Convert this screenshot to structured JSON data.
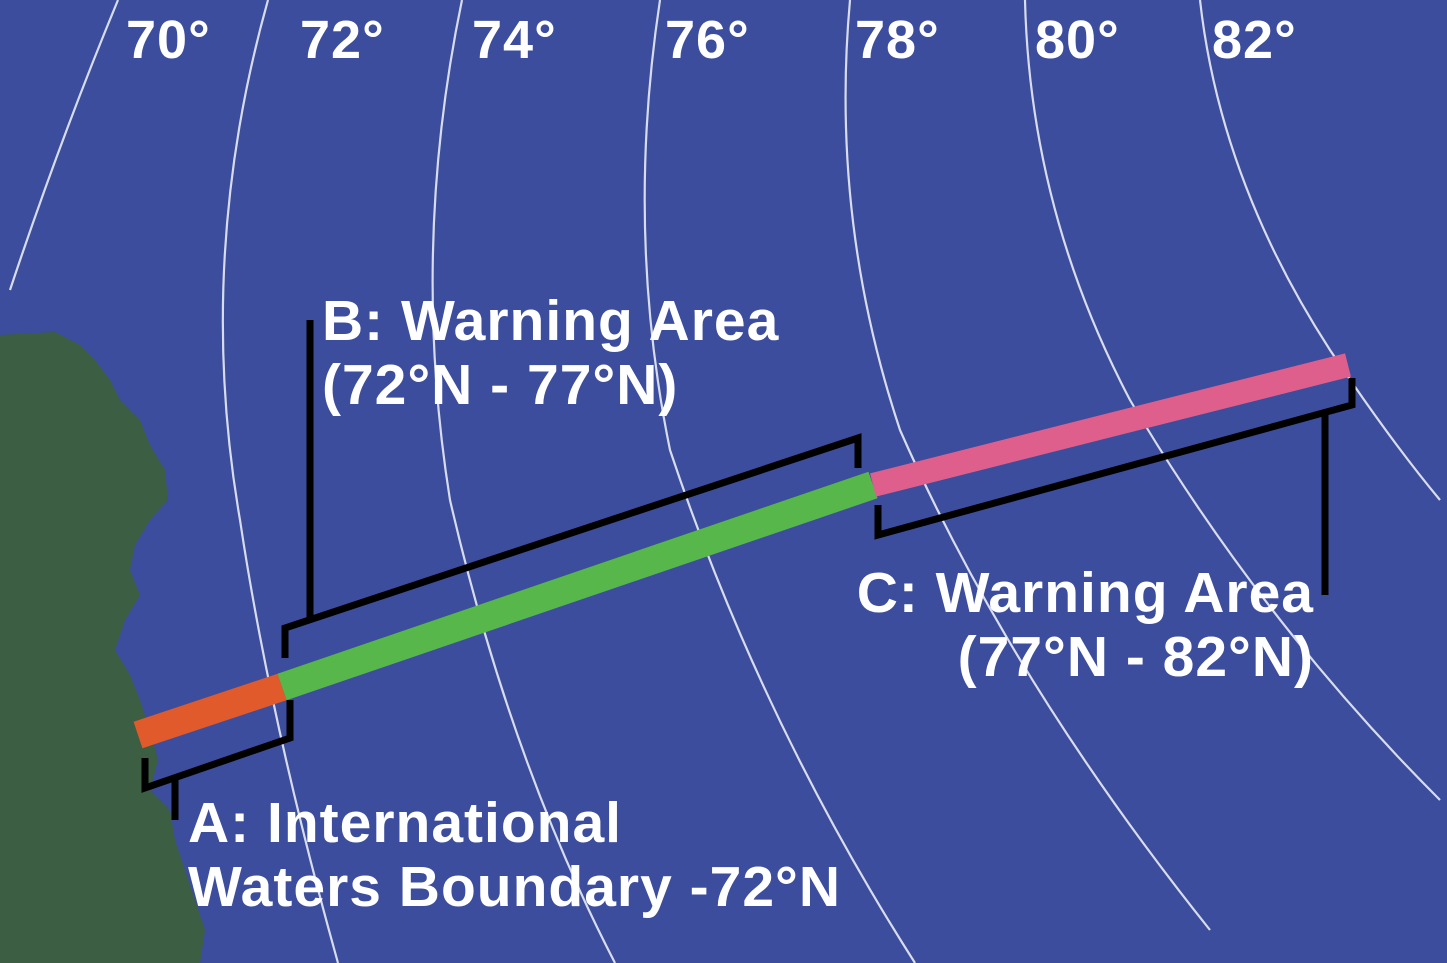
{
  "colors": {
    "ocean": "#3b4d9c",
    "land": "#3c5e42",
    "grid_line": "#e9ecf6",
    "label_text": "#ffffff",
    "bracket": "#000000",
    "segment_a": "#e05a2b",
    "segment_b": "#57b74a",
    "segment_c": "#de5f8c"
  },
  "latitude_labels": [
    "70°",
    "72°",
    "74°",
    "76°",
    "78°",
    "80°",
    "82°"
  ],
  "areas": {
    "a": {
      "line1": "A: International",
      "line2": "Waters Boundary -72°N"
    },
    "b": {
      "line1": "B: Warning Area",
      "line2": "(72°N - 77°N)"
    },
    "c": {
      "line1": "C: Warning Area",
      "line2": "(77°N - 82°N)"
    }
  }
}
